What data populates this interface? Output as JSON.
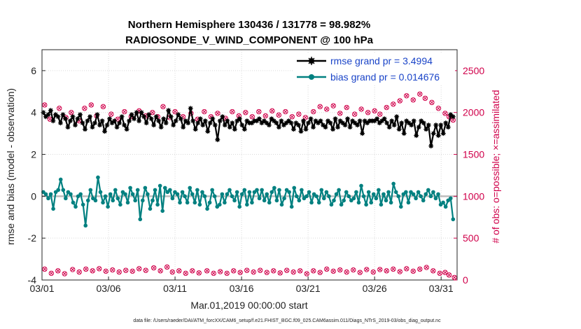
{
  "chart_data": {
    "type": "line",
    "title": "Northern Hemisphere 130436 / 131778 = 98.982%",
    "subtitle": "RADIOSONDE_V_WIND_COMPONENT @ 100 hPa",
    "xlabel": "Mar.01,2019 00:00:00 start",
    "ylabel": "rmse and bias (model - observation)",
    "y2label": "# of obs: o=possible; ×=assimilated",
    "footnote": "data file: /Users/raeder/DAI/ATM_forcXX/CAM6_setup/f.e21.FHIST_BGC.f09_025.CAM6assim.011/Diags_NTrS_2019-03/obs_diag_output.nc",
    "xlim": [
      0,
      31.2
    ],
    "ylim": [
      -4,
      7
    ],
    "y2lim": [
      0,
      2750
    ],
    "x_tick_labels": [
      "03/01",
      "03/06",
      "03/11",
      "03/16",
      "03/21",
      "03/26",
      "03/31"
    ],
    "x_tick_values": [
      0,
      5,
      10,
      15,
      20,
      25,
      30
    ],
    "y_tick_values": [
      -4,
      -2,
      0,
      2,
      4,
      6
    ],
    "y_tick_labels": [
      "-4",
      "-2",
      "0",
      "2",
      "4",
      "6"
    ],
    "y2_tick_values": [
      0,
      500,
      1000,
      1500,
      2000,
      2500
    ],
    "y2_tick_labels": [
      "0",
      "500",
      "1000",
      "1500",
      "2000",
      "2500"
    ],
    "zero_line": 0,
    "legend": {
      "position": "top-right",
      "entries": [
        "rmse grand pr = 3.4994",
        "bias grand pr = 0.014676"
      ]
    },
    "series": [
      {
        "name": "rmse grand pr = 3.4994",
        "role": "rmse",
        "color": "#000000",
        "values": [
          4.0,
          3.8,
          3.9,
          4.1,
          3.6,
          3.9,
          3.8,
          3.5,
          3.9,
          3.7,
          3.3,
          3.6,
          3.8,
          3.4,
          3.7,
          3.9,
          3.5,
          3.2,
          3.6,
          3.8,
          3.3,
          3.5,
          3.9,
          3.4,
          3.6,
          3.1,
          3.4,
          3.7,
          3.5,
          3.6,
          3.3,
          3.5,
          3.8,
          3.4,
          3.2,
          3.6,
          3.9,
          3.7,
          4.0,
          3.6,
          4.0,
          3.8,
          3.5,
          3.9,
          3.7,
          3.4,
          3.8,
          3.6,
          3.3,
          3.7,
          3.5,
          4.1,
          3.8,
          3.4,
          3.6,
          3.9,
          3.7,
          3.3,
          3.6,
          3.5,
          4.2,
          3.6,
          3.2,
          3.5,
          3.7,
          3.4,
          3.6,
          3.1,
          3.5,
          3.7,
          3.4,
          2.7,
          3.6,
          3.8,
          3.4,
          3.6,
          3.3,
          3.5,
          3.2,
          3.6,
          3.7,
          3.4,
          3.2,
          3.6,
          3.5,
          3.5,
          3.6,
          3.6,
          3.7,
          3.5,
          3.6,
          3.5,
          3.4,
          3.7,
          3.6,
          3.5,
          3.3,
          3.6,
          3.4,
          3.5,
          3.6,
          3.5,
          3.2,
          3.5,
          3.4,
          3.1,
          3.6,
          3.2,
          3.5,
          3.7,
          3.3,
          3.6,
          3.5,
          3.6,
          3.4,
          3.3,
          3.6,
          3.5,
          3.2,
          3.7,
          3.3,
          3.6,
          3.5,
          3.4,
          3.7,
          3.3,
          3.6,
          3.5,
          3.4,
          3.6,
          3.0,
          3.6,
          3.5,
          3.6,
          3.6,
          3.6,
          3.7,
          3.5,
          3.6,
          3.7,
          3.5,
          3.3,
          3.6,
          3.4,
          3.8,
          3.2,
          3.5,
          3.0,
          3.6,
          3.5,
          3.4,
          3.6,
          2.9,
          3.3,
          3.6,
          3.5,
          3.2,
          3.4,
          2.4,
          3.0,
          3.4,
          2.9,
          3.4,
          3.0,
          3.5,
          3.3,
          3.9,
          3.8
        ]
      },
      {
        "name": "bias grand pr = 0.014676",
        "role": "bias",
        "color": "#008080",
        "values": [
          0.2,
          0.1,
          -0.1,
          0.1,
          -0.6,
          0.2,
          0.3,
          0.8,
          0.3,
          -0.1,
          0.2,
          0.1,
          -0.3,
          -0.5,
          0.0,
          0.1,
          -0.4,
          -1.4,
          -0.2,
          0.3,
          -0.1,
          -0.2,
          0.9,
          0.2,
          -0.3,
          0.0,
          -0.5,
          0.1,
          -0.2,
          0.3,
          -0.1,
          -0.4,
          0.2,
          0.1,
          -0.3,
          0.4,
          0.1,
          -0.2,
          0.3,
          -1.1,
          -0.2,
          0.4,
          0.1,
          -0.6,
          -0.2,
          0.3,
          -0.4,
          0.5,
          -0.7,
          0.4,
          0.2,
          0.3,
          -0.1,
          0.2,
          0.1,
          -0.3,
          0.2,
          0.0,
          -0.3,
          0.4,
          0.1,
          -0.3,
          0.3,
          -0.4,
          0.2,
          0.0,
          -0.6,
          -0.3,
          0.3,
          0.0,
          -0.5,
          -0.4,
          0.1,
          -0.3,
          0.1,
          0.3,
          0.0,
          -0.2,
          0.2,
          -0.5,
          0.1,
          0.3,
          -0.4,
          0.2,
          -0.3,
          0.2,
          0.3,
          -0.1,
          0.3,
          -0.2,
          0.1,
          -0.3,
          0.2,
          0.4,
          -0.2,
          0.3,
          -0.4,
          -0.1,
          0.3,
          0.2,
          -0.5,
          0.4,
          0.0,
          -0.2,
          0.3,
          -0.1,
          0.0,
          0.2,
          -0.3,
          0.1,
          0.0,
          -0.3,
          0.3,
          -0.1,
          0.2,
          0.0,
          -0.4,
          -0.2,
          0.1,
          0.3,
          -0.4,
          -0.2,
          0.2,
          0.0,
          -0.2,
          -0.1,
          0.2,
          -0.3,
          0.5,
          0.0,
          -0.4,
          0.2,
          -0.3,
          0.1,
          -0.1,
          0.3,
          -0.4,
          0.1,
          -0.2,
          0.2,
          -0.3,
          0.6,
          0.2,
          0.0,
          -0.5,
          0.1,
          0.2,
          -0.3,
          0.2,
          0.1,
          -0.1,
          0.2,
          0.0,
          -0.2,
          0.1,
          0.3,
          0.0,
          0.2,
          -0.1,
          0.1,
          -0.4,
          -0.3,
          -0.5,
          -0.2,
          -0.1,
          -1.1
        ]
      },
      {
        "name": "# of obs possible",
        "role": "count-possible",
        "color": "#d0004a",
        "axis": "right",
        "markers": [
          {
            "x": 0.2,
            "v": 2090
          },
          {
            "x": 0.6,
            "v": 1920
          },
          {
            "x": 1.3,
            "v": 2050
          },
          {
            "x": 1.8,
            "v": 1940
          },
          {
            "x": 2.2,
            "v": 2000
          },
          {
            "x": 2.8,
            "v": 1900
          },
          {
            "x": 3.2,
            "v": 2050
          },
          {
            "x": 3.7,
            "v": 2090
          },
          {
            "x": 4.1,
            "v": 1960
          },
          {
            "x": 4.6,
            "v": 2070
          },
          {
            "x": 5.2,
            "v": 1980
          },
          {
            "x": 5.7,
            "v": 1920
          },
          {
            "x": 6.2,
            "v": 2010
          },
          {
            "x": 6.7,
            "v": 1950
          },
          {
            "x": 7.3,
            "v": 2020
          },
          {
            "x": 7.8,
            "v": 1960
          },
          {
            "x": 8.3,
            "v": 2000
          },
          {
            "x": 8.7,
            "v": 1950
          },
          {
            "x": 9.1,
            "v": 2070
          },
          {
            "x": 9.6,
            "v": 1940
          },
          {
            "x": 10.0,
            "v": 2010
          },
          {
            "x": 10.6,
            "v": 1950
          },
          {
            "x": 11.2,
            "v": 1990
          },
          {
            "x": 11.7,
            "v": 1920
          },
          {
            "x": 12.2,
            "v": 2010
          },
          {
            "x": 12.7,
            "v": 1950
          },
          {
            "x": 13.2,
            "v": 1990
          },
          {
            "x": 13.8,
            "v": 1930
          },
          {
            "x": 14.3,
            "v": 2010
          },
          {
            "x": 14.8,
            "v": 1960
          },
          {
            "x": 15.3,
            "v": 2000
          },
          {
            "x": 15.8,
            "v": 1950
          },
          {
            "x": 16.3,
            "v": 2010
          },
          {
            "x": 16.8,
            "v": 1960
          },
          {
            "x": 17.3,
            "v": 2020
          },
          {
            "x": 17.8,
            "v": 1970
          },
          {
            "x": 18.3,
            "v": 2010
          },
          {
            "x": 18.8,
            "v": 1950
          },
          {
            "x": 19.3,
            "v": 1980
          },
          {
            "x": 19.8,
            "v": 1940
          },
          {
            "x": 20.4,
            "v": 2010
          },
          {
            "x": 20.9,
            "v": 2070
          },
          {
            "x": 21.4,
            "v": 2040
          },
          {
            "x": 21.9,
            "v": 2080
          },
          {
            "x": 22.4,
            "v": 1990
          },
          {
            "x": 22.9,
            "v": 2060
          },
          {
            "x": 23.5,
            "v": 1980
          },
          {
            "x": 24.0,
            "v": 2040
          },
          {
            "x": 24.5,
            "v": 2000
          },
          {
            "x": 25.0,
            "v": 2020
          },
          {
            "x": 25.4,
            "v": 1980
          },
          {
            "x": 25.9,
            "v": 2060
          },
          {
            "x": 26.4,
            "v": 2100
          },
          {
            "x": 26.9,
            "v": 2140
          },
          {
            "x": 27.4,
            "v": 2200
          },
          {
            "x": 27.9,
            "v": 2150
          },
          {
            "x": 28.4,
            "v": 2220
          },
          {
            "x": 28.8,
            "v": 2170
          },
          {
            "x": 29.3,
            "v": 2120
          },
          {
            "x": 29.8,
            "v": 2050
          },
          {
            "x": 30.3,
            "v": 1990
          },
          {
            "x": 30.6,
            "v": 1950
          },
          {
            "x": 30.9,
            "v": 1910
          }
        ]
      },
      {
        "name": "# of obs possible (lower)",
        "role": "count-possible-low",
        "color": "#d0004a",
        "axis": "right",
        "markers": [
          {
            "x": 0.2,
            "v": 130
          },
          {
            "x": 0.7,
            "v": 80
          },
          {
            "x": 1.2,
            "v": 110
          },
          {
            "x": 1.7,
            "v": 75
          },
          {
            "x": 2.3,
            "v": 125
          },
          {
            "x": 2.8,
            "v": 95
          },
          {
            "x": 3.3,
            "v": 130
          },
          {
            "x": 3.8,
            "v": 110
          },
          {
            "x": 4.3,
            "v": 135
          },
          {
            "x": 4.8,
            "v": 105
          },
          {
            "x": 5.3,
            "v": 120
          },
          {
            "x": 5.8,
            "v": 95
          },
          {
            "x": 6.3,
            "v": 115
          },
          {
            "x": 6.8,
            "v": 105
          },
          {
            "x": 7.3,
            "v": 135
          },
          {
            "x": 7.8,
            "v": 115
          },
          {
            "x": 8.4,
            "v": 145
          },
          {
            "x": 8.9,
            "v": 110
          },
          {
            "x": 9.4,
            "v": 155
          },
          {
            "x": 9.8,
            "v": 95
          },
          {
            "x": 10.3,
            "v": 110
          },
          {
            "x": 10.8,
            "v": 80
          },
          {
            "x": 11.3,
            "v": 110
          },
          {
            "x": 11.8,
            "v": 85
          },
          {
            "x": 12.4,
            "v": 110
          },
          {
            "x": 12.9,
            "v": 80
          },
          {
            "x": 13.4,
            "v": 100
          },
          {
            "x": 13.9,
            "v": 80
          },
          {
            "x": 14.4,
            "v": 110
          },
          {
            "x": 14.9,
            "v": 90
          },
          {
            "x": 15.4,
            "v": 115
          },
          {
            "x": 15.9,
            "v": 95
          },
          {
            "x": 16.4,
            "v": 115
          },
          {
            "x": 16.9,
            "v": 90
          },
          {
            "x": 17.4,
            "v": 110
          },
          {
            "x": 17.9,
            "v": 85
          },
          {
            "x": 18.4,
            "v": 115
          },
          {
            "x": 18.9,
            "v": 95
          },
          {
            "x": 19.4,
            "v": 110
          },
          {
            "x": 19.9,
            "v": 75
          },
          {
            "x": 20.4,
            "v": 110
          },
          {
            "x": 20.9,
            "v": 90
          },
          {
            "x": 21.4,
            "v": 130
          },
          {
            "x": 21.9,
            "v": 105
          },
          {
            "x": 22.4,
            "v": 120
          },
          {
            "x": 22.9,
            "v": 95
          },
          {
            "x": 23.4,
            "v": 120
          },
          {
            "x": 23.9,
            "v": 90
          },
          {
            "x": 24.4,
            "v": 125
          },
          {
            "x": 24.9,
            "v": 95
          },
          {
            "x": 25.4,
            "v": 125
          },
          {
            "x": 25.9,
            "v": 110
          },
          {
            "x": 26.4,
            "v": 130
          },
          {
            "x": 26.9,
            "v": 100
          },
          {
            "x": 27.4,
            "v": 135
          },
          {
            "x": 27.9,
            "v": 105
          },
          {
            "x": 28.4,
            "v": 130
          },
          {
            "x": 28.9,
            "v": 150
          },
          {
            "x": 29.4,
            "v": 110
          },
          {
            "x": 29.9,
            "v": 80
          },
          {
            "x": 30.3,
            "v": 90
          },
          {
            "x": 30.6,
            "v": 60
          },
          {
            "x": 31.0,
            "v": 30
          }
        ]
      }
    ]
  }
}
